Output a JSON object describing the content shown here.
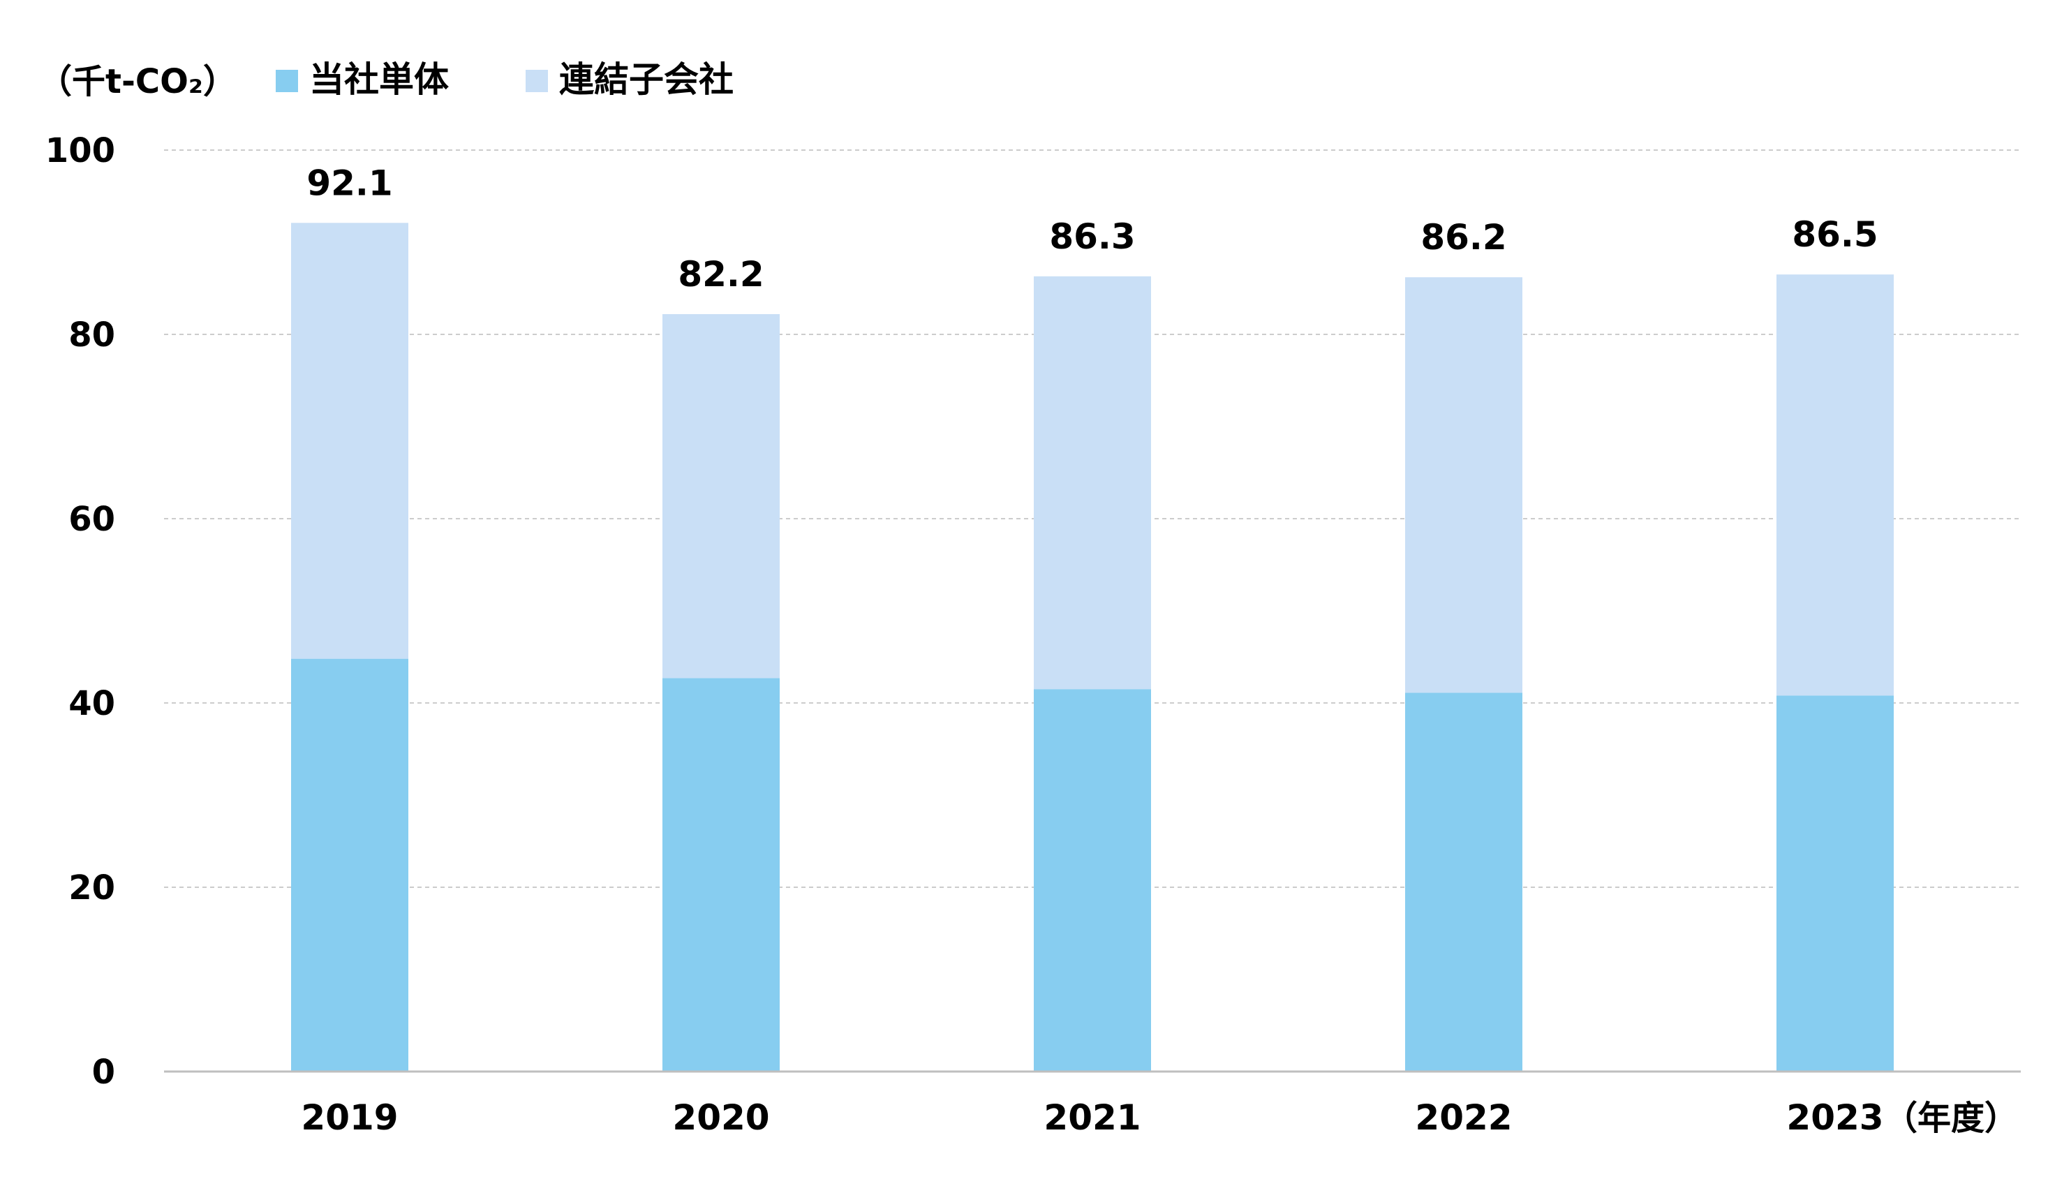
{
  "chart_data": {
    "type": "bar",
    "stacked": true,
    "title": "",
    "unit_label": "（千t-CO₂）",
    "xlabel": "",
    "x_unit_label": "（年度）",
    "ylabel": "",
    "categories": [
      "2019",
      "2020",
      "2021",
      "2022",
      "2023"
    ],
    "series": [
      {
        "name": "当社単体",
        "values": [
          44.8,
          42.7,
          41.5,
          41.1,
          40.8
        ],
        "color": "#87CDF0"
      },
      {
        "name": "連結子会社",
        "values": [
          47.3,
          39.5,
          44.8,
          45.1,
          45.7
        ],
        "color": "#C9DFF6"
      }
    ],
    "totals": [
      "92.1",
      "82.2",
      "86.3",
      "86.2",
      "86.5"
    ],
    "ylim": [
      0,
      100
    ],
    "yticks": [
      "0",
      "20",
      "40",
      "60",
      "80",
      "100"
    ],
    "grid": true,
    "grid_color": "#CCCCCC",
    "axis_color": "#BFBFBF",
    "legend_position": "top-left"
  }
}
